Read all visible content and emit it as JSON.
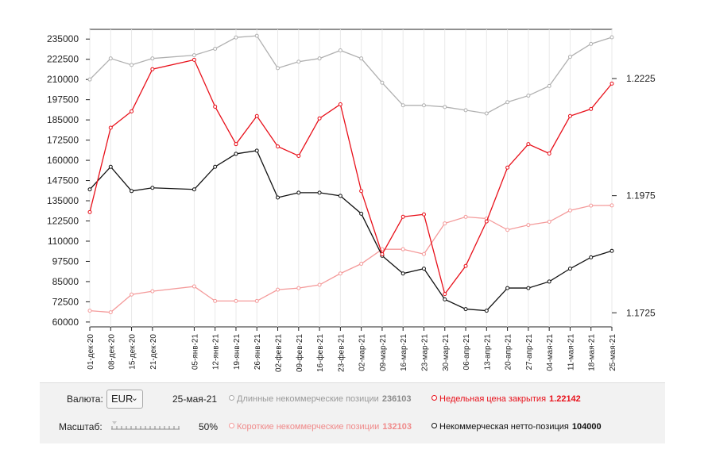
{
  "chart_data": {
    "type": "line",
    "categories": [
      "01-дек-20",
      "08-дек-20",
      "15-дек-20",
      "21-дек-20",
      "05-янв-21",
      "12-янв-21",
      "19-янв-21",
      "26-янв-21",
      "02-фев-21",
      "09-фев-21",
      "16-фев-21",
      "23-фев-21",
      "02-мар-21",
      "09-мар-21",
      "16-мар-21",
      "23-мар-21",
      "30-мар-21",
      "06-апр-21",
      "13-апр-21",
      "20-апр-21",
      "27-апр-21",
      "04-мая-21",
      "11-мая-21",
      "18-мая-21",
      "25-мая-21"
    ],
    "x_positions": [
      0,
      1,
      2,
      3,
      5,
      6,
      7,
      8,
      9,
      10,
      11,
      12,
      13,
      14,
      15,
      16,
      17,
      18,
      19,
      20,
      21,
      22,
      23,
      24,
      25
    ],
    "left_axis": {
      "min": 57000,
      "max": 241000,
      "ticks": [
        "235000",
        "222500",
        "210000",
        "197500",
        "185000",
        "172500",
        "160000",
        "147500",
        "135000",
        "122500",
        "110000",
        "97500",
        "85000",
        "72500",
        "60000"
      ]
    },
    "right_axis": {
      "min": 1.1695,
      "max": 1.233,
      "ticks": [
        "1.2225",
        "1.1975",
        "1.1725"
      ]
    },
    "series": [
      {
        "name": "Длинные некоммерческие позиции",
        "color": "#b0b0b0",
        "axis": "left",
        "values": [
          210000,
          223000,
          219000,
          223000,
          225000,
          229000,
          236000,
          237000,
          217000,
          221000,
          223000,
          228000,
          223000,
          208000,
          194000,
          194000,
          193000,
          191000,
          189000,
          196000,
          200000,
          206000,
          224000,
          232000,
          236103
        ]
      },
      {
        "name": "Короткие некоммерческие позиции",
        "color": "#f49a9a",
        "axis": "left",
        "values": [
          67000,
          66000,
          77000,
          79000,
          82000,
          73000,
          73000,
          73000,
          80000,
          81000,
          83000,
          90000,
          96000,
          105000,
          105000,
          102000,
          121000,
          125000,
          124000,
          117000,
          120000,
          122000,
          129000,
          132000,
          132103
        ]
      },
      {
        "name": "Некоммерческая нетто-позиция",
        "color": "#111111",
        "axis": "left",
        "values": [
          142000,
          156000,
          141000,
          143000,
          142000,
          156000,
          164000,
          166000,
          137000,
          140000,
          140000,
          138000,
          127000,
          101000,
          90000,
          93000,
          74000,
          68000,
          67000,
          81000,
          81000,
          85000,
          93000,
          100000,
          104000
        ]
      },
      {
        "name": "Недельная цена закрытия",
        "color": "#e8101a",
        "axis": "right",
        "values": [
          1.194,
          1.212,
          1.2155,
          1.2245,
          1.2265,
          1.2165,
          1.2085,
          1.2145,
          1.208,
          1.206,
          1.214,
          1.217,
          1.1985,
          1.185,
          1.193,
          1.1935,
          1.1765,
          1.1825,
          1.192,
          1.2035,
          1.2085,
          1.2065,
          1.2145,
          1.216,
          1.22142
        ]
      }
    ]
  },
  "controls": {
    "currency_label": "Валюта:",
    "currency_value": "EUR",
    "date": "25-мая-21",
    "scale_label": "Масштаб:",
    "scale_value": "50%"
  },
  "legend": [
    {
      "label": "Длинные некоммерческие позиции",
      "value": "236103",
      "color": "#aaaaaa"
    },
    {
      "label": "Недельная цена закрытия",
      "value": "1.22142",
      "color": "#e8101a"
    },
    {
      "label": "Короткие некоммерческие позиции",
      "value": "132103",
      "color": "#f49a9a"
    },
    {
      "label": "Некоммерческая нетто-позиция",
      "value": "104000",
      "color": "#111111"
    }
  ]
}
